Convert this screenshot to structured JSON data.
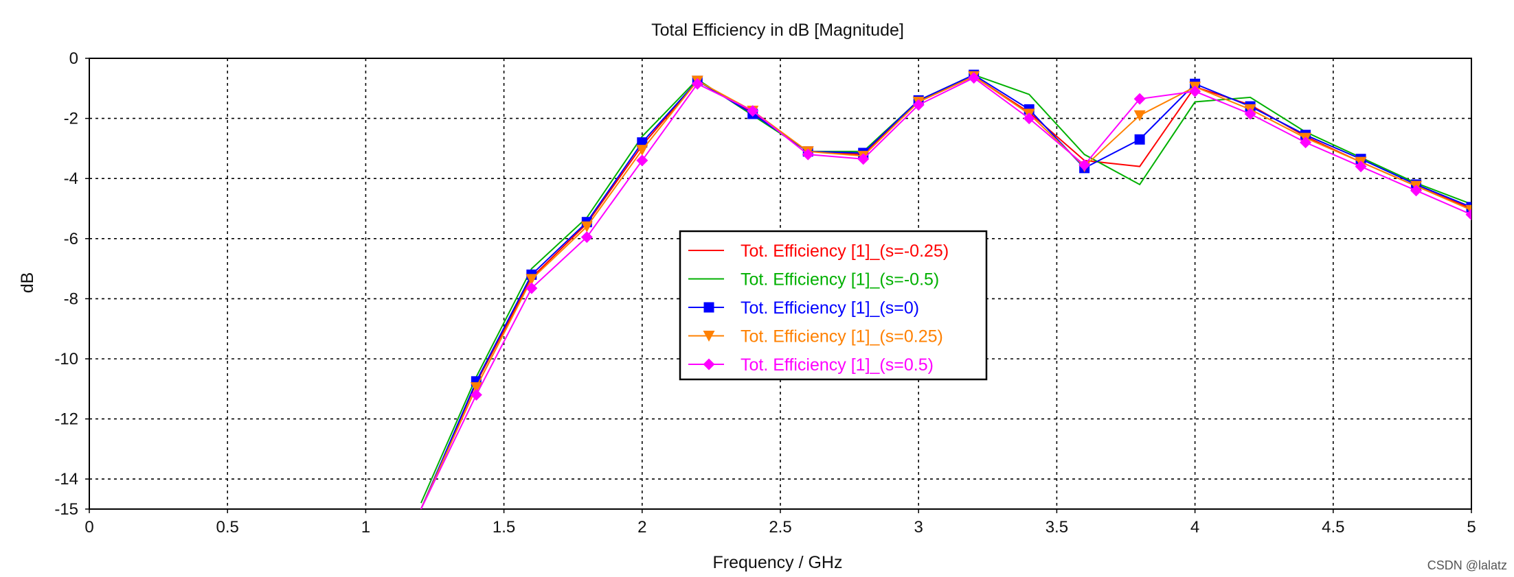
{
  "chart_data": {
    "type": "line",
    "title": "Total Efficiency in dB [Magnitude]",
    "xlabel": "Frequency / GHz",
    "ylabel": "dB",
    "xlim": [
      0,
      5
    ],
    "ylim": [
      -15,
      0
    ],
    "x_ticks": [
      0,
      0.5,
      1,
      1.5,
      2,
      2.5,
      3,
      3.5,
      4,
      4.5,
      5
    ],
    "x_tick_labels": [
      "0",
      "0.5",
      "1",
      "1.5",
      "2",
      "2.5",
      "3",
      "3.5",
      "4",
      "4.5",
      "5"
    ],
    "y_ticks": [
      0,
      -2,
      -4,
      -6,
      -8,
      -10,
      -12,
      -14,
      -15
    ],
    "y_tick_labels": [
      "0",
      "-2",
      "-4",
      "-6",
      "-8",
      "-10",
      "-12",
      "-14",
      "-15"
    ],
    "grid": true,
    "legend_position": "center",
    "x": [
      1.2,
      1.4,
      1.6,
      1.8,
      2.0,
      2.2,
      2.4,
      2.6,
      2.8,
      3.0,
      3.2,
      3.4,
      3.6,
      3.8,
      4.0,
      4.2,
      4.4,
      4.6,
      4.8,
      5.0
    ],
    "series": [
      {
        "name": "Tot. Efficiency [1]_(s=-0.25)",
        "color": "#ff0000",
        "marker": "none",
        "values": [
          -15.0,
          -10.8,
          -7.3,
          -5.5,
          -2.9,
          -0.75,
          -1.8,
          -3.1,
          -3.2,
          -1.45,
          -0.6,
          -1.8,
          -3.4,
          -3.6,
          -0.95,
          -1.55,
          -2.6,
          -3.45,
          -4.25,
          -5.0
        ]
      },
      {
        "name": "Tot. Efficiency [1]_(s=-0.5)",
        "color": "#00b000",
        "marker": "none",
        "values": [
          -14.8,
          -10.6,
          -7.0,
          -5.3,
          -2.6,
          -0.7,
          -1.9,
          -3.1,
          -3.1,
          -1.4,
          -0.55,
          -1.2,
          -3.2,
          -4.2,
          -1.45,
          -1.3,
          -2.45,
          -3.3,
          -4.15,
          -4.85
        ]
      },
      {
        "name": "Tot. Efficiency [1]_(s=0)",
        "color": "#0000ff",
        "marker": "square",
        "values": [
          -15.0,
          -10.75,
          -7.2,
          -5.45,
          -2.8,
          -0.75,
          -1.85,
          -3.1,
          -3.15,
          -1.4,
          -0.55,
          -1.7,
          -3.65,
          -2.7,
          -0.85,
          -1.6,
          -2.55,
          -3.35,
          -4.2,
          -4.95
        ]
      },
      {
        "name": "Tot. Efficiency [1]_(s=0.25)",
        "color": "#ff8000",
        "marker": "triangle-down",
        "values": [
          -15.0,
          -10.95,
          -7.35,
          -5.6,
          -3.05,
          -0.75,
          -1.75,
          -3.1,
          -3.25,
          -1.45,
          -0.6,
          -1.85,
          -3.6,
          -1.9,
          -0.95,
          -1.7,
          -2.65,
          -3.45,
          -4.25,
          -5.05
        ]
      },
      {
        "name": "Tot. Efficiency [1]_(s=0.5)",
        "color": "#ff00ff",
        "marker": "diamond",
        "values": [
          -15.0,
          -11.2,
          -7.65,
          -5.95,
          -3.4,
          -0.85,
          -1.75,
          -3.2,
          -3.35,
          -1.55,
          -0.65,
          -2.0,
          -3.55,
          -1.35,
          -1.1,
          -1.85,
          -2.8,
          -3.6,
          -4.4,
          -5.2
        ]
      }
    ]
  },
  "watermark": "CSDN @lalatz"
}
